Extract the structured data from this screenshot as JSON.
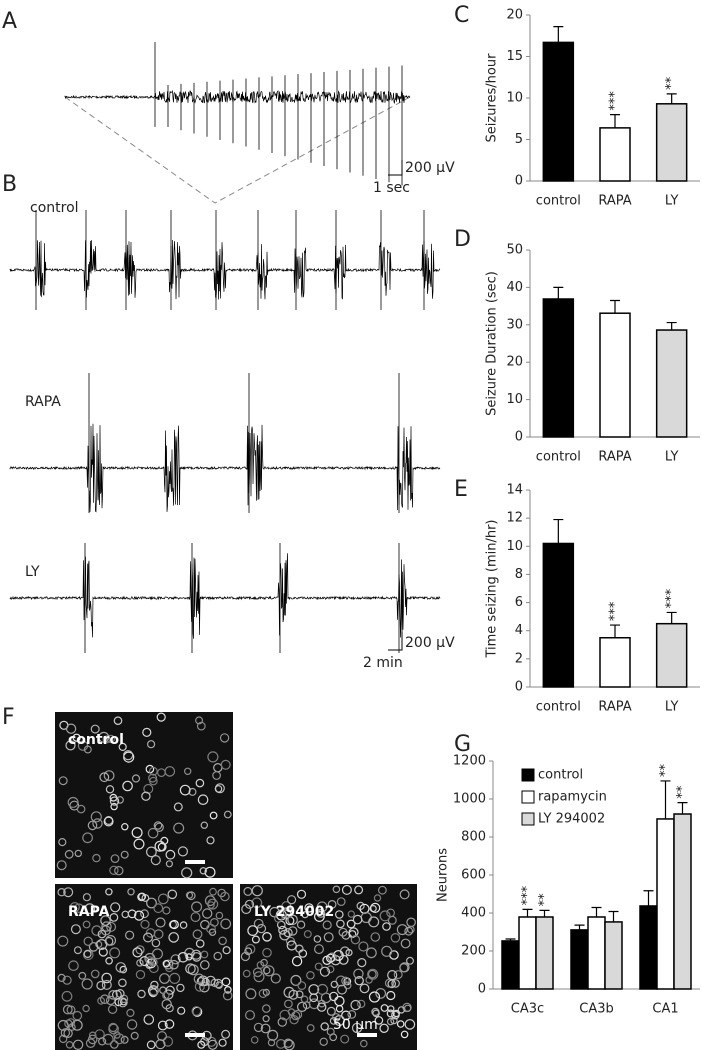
{
  "figure": {
    "panel_labels": [
      "A",
      "B",
      "C",
      "D",
      "E",
      "F",
      "G"
    ],
    "traces": [
      "control",
      "RAPA",
      "LY"
    ],
    "scale_a": [
      "200 µV",
      "1 sec"
    ],
    "scale_b": [
      "200 µV",
      "2 min"
    ],
    "images": [
      "control",
      "RAPA",
      "LY 294002"
    ],
    "image_scale": "50 µm"
  },
  "chart_data": [
    {
      "type": "bar",
      "ylabel": "Seizures/hour",
      "categories": [
        "control",
        "RAPA",
        "LY"
      ],
      "values": [
        16.7,
        6.4,
        9.3
      ],
      "errors": [
        1.9,
        1.6,
        1.2
      ],
      "colors": [
        "#000000",
        "#ffffff",
        "#d9d9d9"
      ],
      "ylim": [
        0,
        20
      ],
      "yticks": [
        0,
        5,
        10,
        15,
        20
      ],
      "annotations": [
        {
          "text": "***",
          "index": 1
        },
        {
          "text": "**",
          "index": 2
        }
      ]
    },
    {
      "type": "bar",
      "ylabel": "Seizure Duration (sec)",
      "categories": [
        "control",
        "RAPA",
        "LY"
      ],
      "values": [
        36.9,
        33.1,
        28.6
      ],
      "errors": [
        3.1,
        3.4,
        2.0
      ],
      "colors": [
        "#000000",
        "#ffffff",
        "#d9d9d9"
      ],
      "ylim": [
        0,
        50
      ],
      "yticks": [
        0,
        10,
        20,
        30,
        40,
        50
      ]
    },
    {
      "type": "bar",
      "ylabel": "Time seizing (min/hr)",
      "categories": [
        "control",
        "RAPA",
        "LY"
      ],
      "values": [
        10.2,
        3.5,
        4.5
      ],
      "errors": [
        1.7,
        0.9,
        0.8
      ],
      "colors": [
        "#000000",
        "#ffffff",
        "#d9d9d9"
      ],
      "ylim": [
        0,
        14
      ],
      "yticks": [
        0,
        2,
        4,
        6,
        8,
        10,
        12,
        14
      ],
      "annotations": [
        {
          "text": "***",
          "index": 1
        },
        {
          "text": "***",
          "index": 2
        }
      ]
    },
    {
      "type": "bar",
      "ylabel": "Neurons",
      "categories": [
        "CA3c",
        "CA3b",
        "CA1"
      ],
      "series": [
        {
          "name": "control",
          "color": "#000000",
          "values": [
            253,
            311,
            437
          ],
          "errors": [
            10,
            25,
            80
          ]
        },
        {
          "name": "rapamycin",
          "color": "#ffffff",
          "values": [
            379,
            379,
            895
          ],
          "errors": [
            40,
            50,
            200
          ]
        },
        {
          "name": "LY 294002",
          "color": "#d9d9d9",
          "values": [
            379,
            353,
            921
          ],
          "errors": [
            35,
            55,
            60
          ]
        }
      ],
      "ylim": [
        0,
        1200
      ],
      "yticks": [
        0,
        200,
        400,
        600,
        800,
        1000,
        1200
      ],
      "annotations": [
        {
          "text": "***",
          "series": 1,
          "index": 0
        },
        {
          "text": "**",
          "series": 2,
          "index": 0
        },
        {
          "text": "**",
          "series": 1,
          "index": 2
        },
        {
          "text": "**",
          "series": 2,
          "index": 2
        }
      ]
    }
  ]
}
